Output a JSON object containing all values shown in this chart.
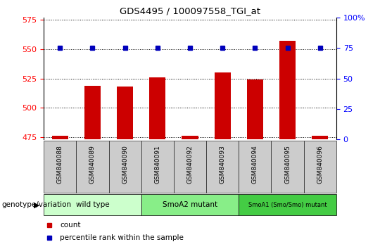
{
  "title": "GDS4495 / 100097558_TGI_at",
  "samples": [
    "GSM840088",
    "GSM840089",
    "GSM840090",
    "GSM840091",
    "GSM840092",
    "GSM840093",
    "GSM840094",
    "GSM840095",
    "GSM840096"
  ],
  "counts": [
    476,
    519,
    518,
    526,
    476,
    530,
    524,
    557,
    476
  ],
  "percentile_ranks": [
    75,
    75,
    75,
    75,
    75,
    75,
    75,
    75,
    75
  ],
  "ylim_left": [
    473,
    577
  ],
  "ylim_right": [
    0,
    100
  ],
  "yticks_left": [
    475,
    500,
    525,
    550,
    575
  ],
  "yticks_right": [
    0,
    25,
    50,
    75,
    100
  ],
  "bar_color": "#cc0000",
  "dot_color": "#0000bb",
  "bar_width": 0.5,
  "groups": [
    {
      "label": "wild type",
      "start": 0,
      "end": 2,
      "color": "#ccffcc"
    },
    {
      "label": "SmoA2 mutant",
      "start": 3,
      "end": 5,
      "color": "#88ee88"
    },
    {
      "label": "SmoA1 (Smo/Smo) mutant",
      "start": 6,
      "end": 8,
      "color": "#44cc44"
    }
  ],
  "group_label": "genotype/variation",
  "tick_bg_color": "#cccccc",
  "sample_label_fontsize": 6.5,
  "group_label_fontsize": 7.5
}
